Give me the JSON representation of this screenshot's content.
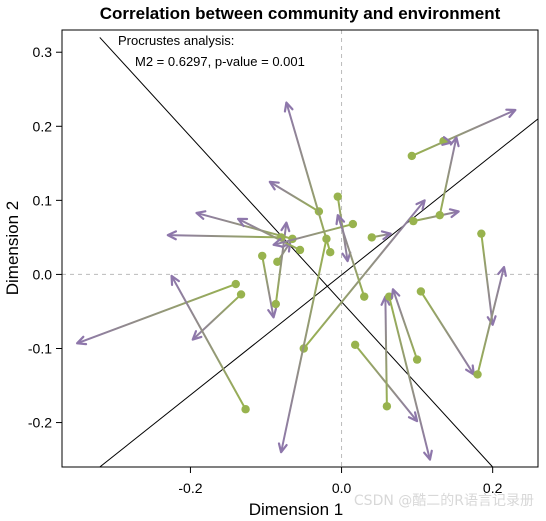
{
  "chart_data": {
    "type": "scatter",
    "title": "Correlation between community and environment",
    "xlabel": "Dimension 1",
    "ylabel": "Dimension 2",
    "xlim": [
      -0.37,
      0.26
    ],
    "ylim": [
      -0.26,
      0.33
    ],
    "x_ticks": [
      -0.2,
      0.0,
      0.2
    ],
    "x_tick_labels": [
      "-0.2",
      "0.0",
      "0.2"
    ],
    "y_ticks": [
      -0.2,
      -0.1,
      0.0,
      0.1,
      0.2,
      0.3
    ],
    "y_tick_labels": [
      "-0.2",
      "-0.1",
      "0.0",
      "0.1",
      "0.2",
      "0.3"
    ],
    "reference_lines": {
      "horizontal_y": 0,
      "vertical_x": 0,
      "style": "dashed"
    },
    "rotation_axes": [
      {
        "x1": -0.32,
        "y1": 0.32,
        "x2": 0.2,
        "y2": -0.26
      },
      {
        "x1": -0.32,
        "y1": -0.26,
        "x2": 0.26,
        "y2": 0.21
      }
    ],
    "annotations": [
      "Procrustes analysis:",
      "M2 = 0.6297, p-value = 0.001"
    ],
    "colors": {
      "start": "#98b34e",
      "end": "#8e77ab",
      "axis_lines": "#000000",
      "ref_lines": "#bbbbbb"
    },
    "arrows": [
      {
        "x0": -0.14,
        "y0": -0.013,
        "x1": -0.35,
        "y1": -0.093
      },
      {
        "x0": -0.133,
        "y0": -0.027,
        "x1": -0.197,
        "y1": -0.088
      },
      {
        "x0": -0.127,
        "y0": -0.182,
        "x1": -0.225,
        "y1": -0.002
      },
      {
        "x0": -0.105,
        "y0": 0.025,
        "x1": -0.09,
        "y1": -0.058
      },
      {
        "x0": -0.085,
        "y0": 0.017,
        "x1": -0.068,
        "y1": 0.043
      },
      {
        "x0": -0.087,
        "y0": -0.04,
        "x1": -0.073,
        "y1": 0.07
      },
      {
        "x0": -0.08,
        "y0": 0.05,
        "x1": -0.23,
        "y1": 0.053
      },
      {
        "x0": -0.065,
        "y0": 0.048,
        "x1": -0.192,
        "y1": 0.083
      },
      {
        "x0": -0.055,
        "y0": 0.033,
        "x1": -0.137,
        "y1": 0.075
      },
      {
        "x0": -0.05,
        "y0": -0.1,
        "x1": 0.11,
        "y1": 0.1
      },
      {
        "x0": -0.03,
        "y0": 0.085,
        "x1": -0.095,
        "y1": 0.125
      },
      {
        "x0": -0.02,
        "y0": 0.048,
        "x1": -0.08,
        "y1": -0.24
      },
      {
        "x0": -0.015,
        "y0": 0.03,
        "x1": -0.073,
        "y1": 0.232
      },
      {
        "x0": -0.005,
        "y0": 0.105,
        "x1": 0.008,
        "y1": 0.018
      },
      {
        "x0": 0.015,
        "y0": 0.068,
        "x1": -0.09,
        "y1": 0.04
      },
      {
        "x0": 0.018,
        "y0": -0.095,
        "x1": 0.1,
        "y1": -0.198
      },
      {
        "x0": 0.03,
        "y0": -0.03,
        "x1": -0.005,
        "y1": 0.08
      },
      {
        "x0": 0.04,
        "y0": 0.05,
        "x1": 0.065,
        "y1": 0.055
      },
      {
        "x0": 0.06,
        "y0": -0.178,
        "x1": 0.058,
        "y1": -0.03
      },
      {
        "x0": 0.063,
        "y0": -0.03,
        "x1": 0.117,
        "y1": -0.25
      },
      {
        "x0": 0.093,
        "y0": 0.16,
        "x1": 0.23,
        "y1": 0.222
      },
      {
        "x0": 0.095,
        "y0": 0.072,
        "x1": 0.155,
        "y1": 0.085
      },
      {
        "x0": 0.1,
        "y0": -0.115,
        "x1": 0.068,
        "y1": -0.02
      },
      {
        "x0": 0.105,
        "y0": -0.023,
        "x1": 0.175,
        "y1": -0.135
      },
      {
        "x0": 0.13,
        "y0": 0.08,
        "x1": 0.152,
        "y1": 0.185
      },
      {
        "x0": 0.135,
        "y0": 0.18,
        "x1": 0.145,
        "y1": 0.178
      },
      {
        "x0": 0.185,
        "y0": 0.055,
        "x1": 0.2,
        "y1": -0.068
      },
      {
        "x0": 0.18,
        "y0": -0.135,
        "x1": 0.215,
        "y1": 0.01
      }
    ]
  },
  "watermark": "CSDN @酷二的R语言记录册"
}
